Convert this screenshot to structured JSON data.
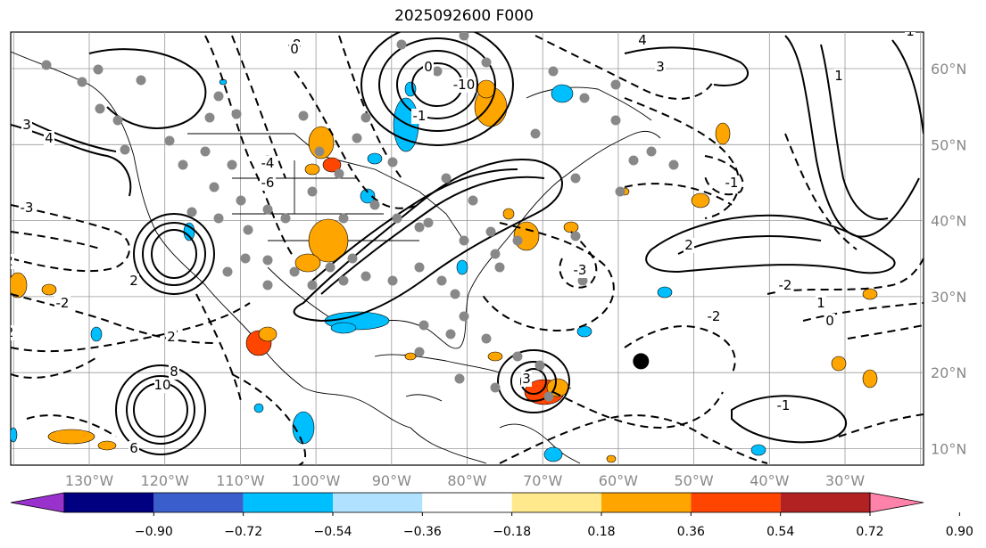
{
  "title": "2025092600 F000",
  "colors": {
    "positive_shading": "#ffa500",
    "negative_shading": "#00bfff",
    "contour": "#000000",
    "gridline": "#999999",
    "station_dots": "#888888"
  },
  "axes": {
    "lon_labels": [
      "130°W",
      "120°W",
      "110°W",
      "100°W",
      "90°W",
      "80°W",
      "70°W",
      "60°W",
      "50°W",
      "40°W",
      "30°W"
    ],
    "lat_labels": [
      "60°N",
      "50°N",
      "40°N",
      "30°N",
      "20°N",
      "10°N"
    ]
  },
  "contour_labels": [
    "2",
    "-2",
    "-3",
    "-4",
    "-6",
    "-8",
    "-10",
    "0",
    "1",
    "3",
    "4",
    "6",
    "8",
    "10",
    "-1",
    "2",
    "-3",
    "3",
    "-1",
    "-2",
    "2",
    "-1",
    "0",
    "-2",
    "1",
    "-2",
    "2",
    "4",
    "3",
    "1",
    "0"
  ],
  "colorbar": {
    "colors": [
      "#9932cc",
      "#000080",
      "#3a5fcd",
      "#00bfff",
      "#b0e2ff",
      "#ffffff",
      "#ffe98c",
      "#ffa500",
      "#ff4500",
      "#b22222",
      "#ff82ab"
    ],
    "tick_labels": [
      "−0.90",
      "−0.72",
      "−0.54",
      "−0.36",
      "−0.18",
      "0.18",
      "0.36",
      "0.54",
      "0.72",
      "0.90"
    ]
  },
  "markers": [
    {
      "name": "storm-marker",
      "lon": -57,
      "lat": 21.5
    }
  ]
}
